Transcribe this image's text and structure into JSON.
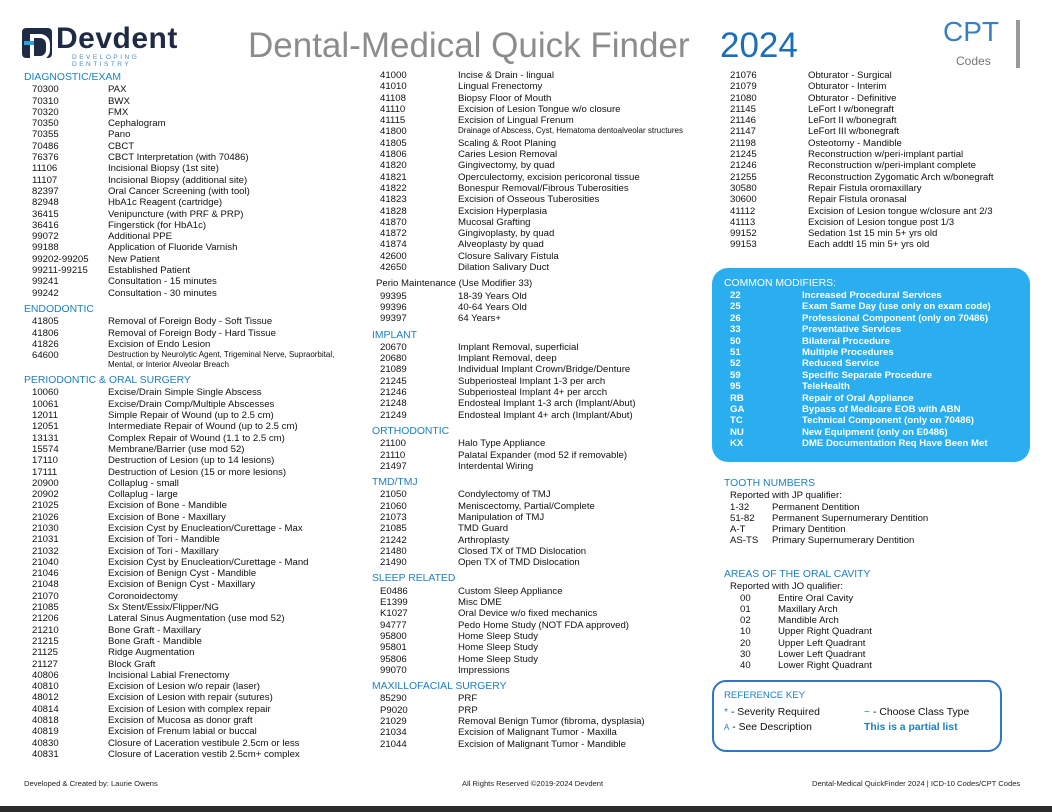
{
  "header": {
    "logo_name": "Devdent",
    "logo_tagline": "DEVELOPING DENTISTRY",
    "title": "Dental-Medical Quick Finder",
    "year": "2024",
    "code_type": "CPT",
    "code_type_sub": "Codes"
  },
  "colors": {
    "accent": "#1b7fc4",
    "modifier_box": "#2aaef0",
    "title_gray": "#8c8c8c"
  },
  "col1": [
    {
      "title": "DIAGNOSTIC/EXAM",
      "rows": [
        [
          "70300",
          "PAX"
        ],
        [
          "70310",
          "BWX"
        ],
        [
          "70320",
          "FMX"
        ],
        [
          "70350",
          "Cephalogram"
        ],
        [
          "70355",
          "Pano"
        ],
        [
          "70486",
          "CBCT"
        ],
        [
          "76376",
          "CBCT Interpretation (with 70486)"
        ],
        [
          "11106",
          "Incisional Biopsy (1st site)"
        ],
        [
          "11107",
          "Incisional Biopsy (additional site)"
        ],
        [
          "82397",
          "Oral Cancer Screening (with tool)"
        ],
        [
          "82948",
          "HbA1c Reagent (cartridge)"
        ],
        [
          "36415",
          "Venipuncture (with PRF & PRP)"
        ],
        [
          "36416",
          "Fingerstick (for HbA1c)"
        ],
        [
          "99072",
          "Additional PPE"
        ],
        [
          "99188",
          "Application of Fluoride Varnish"
        ],
        [
          "99202-99205",
          "New Patient"
        ],
        [
          "99211-99215",
          "Established Patient"
        ],
        [
          "99241",
          "Consultation - 15 minutes"
        ],
        [
          "99242",
          "Consultation - 30 minutes"
        ]
      ]
    },
    {
      "title": "ENDODONTIC",
      "rows": [
        [
          "41805",
          "Removal of Foreign Body - Soft Tissue"
        ],
        [
          "41806",
          "Removal of Foreign Body - Hard Tissue"
        ],
        [
          "41826",
          "Excision of Endo Lesion"
        ],
        [
          "64600",
          "Destruction by Neurolytic Agent, Trigeminal Nerve, Supraorbital, Mental, or Interior Alveolar Breach"
        ]
      ]
    },
    {
      "title": "PERIODONTIC & ORAL SURGERY",
      "rows": [
        [
          "10060",
          "Excise/Drain Simple Single Abscess"
        ],
        [
          "10061",
          "Excise/Drain Comp/Multiple Abscesses"
        ],
        [
          "12011",
          "Simple Repair of Wound (up to 2.5 cm)"
        ],
        [
          "12051",
          "Intermediate Repair of Wound (up to 2.5 cm)"
        ],
        [
          "13131",
          "Complex Repair of Wound (1.1 to 2.5 cm)"
        ],
        [
          "15574",
          "Membrane/Barrier (use mod 52)"
        ],
        [
          "17110",
          "Destruction of Lesion (up to 14 lesions)"
        ],
        [
          "17111",
          "Destruction of Lesion (15 or more lesions)"
        ],
        [
          "20900",
          "Collaplug - small"
        ],
        [
          "20902",
          "Collaplug - large"
        ],
        [
          "21025",
          "Excision of Bone - Mandible"
        ],
        [
          "21026",
          "Excision of Bone - Maxillary"
        ],
        [
          "21030",
          "Excision Cyst by Enucleation/Curettage - Max"
        ],
        [
          "21031",
          "Excision of Tori - Mandible"
        ],
        [
          "21032",
          "Excision of Tori - Maxillary"
        ],
        [
          "21040",
          "Excision Cyst by Enucleation/Curettage - Mand"
        ],
        [
          "21046",
          "Excision of Benign Cyst - Mandible"
        ],
        [
          "21048",
          "Excision of Benign Cyst - Maxillary"
        ],
        [
          "21070",
          "Coronoidectomy"
        ],
        [
          "21085",
          "Sx Stent/Essix/Flipper/NG"
        ],
        [
          "21206",
          "Lateral Sinus Augmentation (use mod 52)"
        ],
        [
          "21210",
          "Bone Graft - Maxillary"
        ],
        [
          "21215",
          "Bone Graft - Mandible"
        ],
        [
          "21125",
          "Ridge Augmentation"
        ],
        [
          "21127",
          "Block Graft"
        ],
        [
          "40806",
          "Incisional Labial Frenectomy"
        ],
        [
          "40810",
          "Excision of Lesion w/o repair (laser)"
        ],
        [
          "48012",
          "Excision of Lesion with repair (sutures)"
        ],
        [
          "40814",
          "Excision of Lesion with complex repair"
        ],
        [
          "40818",
          "Excision of Mucosa as donor graft"
        ],
        [
          "40819",
          "Excision of Frenum labial or buccal"
        ],
        [
          "40830",
          "Closure of Laceration vestibule 2.5cm or less"
        ],
        [
          "40831",
          "Closure of Laceration vestib 2.5cm+ complex"
        ]
      ]
    }
  ],
  "col2": [
    {
      "title": "",
      "rows": [
        [
          "41000",
          "Incise & Drain - lingual"
        ],
        [
          "41010",
          "Lingual Frenectomy"
        ],
        [
          "41108",
          "Biopsy Floor of Mouth"
        ],
        [
          "41110",
          "Excision of Lesion Tongue w/o closure"
        ],
        [
          "41115",
          "Excision of Lingual Frenum"
        ],
        [
          "41800",
          "Drainage of Abscess, Cyst, Hematoma dentoalveolar structures"
        ],
        [
          "41805",
          "Scaling & Root Planing"
        ],
        [
          "41806",
          "Caries Lesion Removal"
        ],
        [
          "41820",
          "Gingivectomy, by quad"
        ],
        [
          "41821",
          "Operculectomy, excision pericoronal tissue"
        ],
        [
          "41822",
          "Bonespur Removal/Fibrous Tuberosities"
        ],
        [
          "41823",
          "Excision of Osseous Tuberosities"
        ],
        [
          "41828",
          "Excision Hyperplasia"
        ],
        [
          "41870",
          "Mucosal Grafting"
        ],
        [
          "41872",
          "Gingivoplasty, by quad"
        ],
        [
          "41874",
          "Alveoplasty by quad"
        ],
        [
          "42600",
          "Closure Salivary Fistula"
        ],
        [
          "42650",
          "Dilation Salivary Duct"
        ]
      ]
    },
    {
      "title": "Perio Maintenance (Use Modifier 33)",
      "rows": [
        [
          "99395",
          "18-39 Years Old"
        ],
        [
          "99396",
          "40-64 Years Old"
        ],
        [
          "99397",
          "64 Years+"
        ]
      ]
    },
    {
      "title": "IMPLANT",
      "rows": [
        [
          "20670",
          "Implant Removal, superficial"
        ],
        [
          "20680",
          "Implant Removal, deep"
        ],
        [
          "21089",
          "Individual Implant Crown/Bridge/Denture"
        ],
        [
          "21245",
          "Subperiosteal Implant 1-3 per arch"
        ],
        [
          "21246",
          "Subperiosteal Implant 4+ per arcch"
        ],
        [
          "21248",
          "Endosteal Implant 1-3 arch (Implant/Abut)"
        ],
        [
          "21249",
          "Endosteal Implant 4+ arch (Implant/Abut)"
        ]
      ]
    },
    {
      "title": "ORTHODONTIC",
      "rows": [
        [
          "21100",
          "Halo Type Appliance"
        ],
        [
          "21110",
          "Palatal Expander (mod 52 if removable)"
        ],
        [
          "21497",
          "Interdental Wiring"
        ]
      ]
    },
    {
      "title": "TMD/TMJ",
      "rows": [
        [
          "21050",
          "Condylectomy of TMJ"
        ],
        [
          "21060",
          "Meniscectomy, Partial/Complete"
        ],
        [
          "21073",
          "Manipulation of TMJ"
        ],
        [
          "21085",
          "TMD Guard"
        ],
        [
          "21242",
          "Arthroplasty"
        ],
        [
          "21480",
          "Closed TX of TMD Dislocation"
        ],
        [
          "21490",
          "Open TX of TMD Dislocation"
        ]
      ]
    },
    {
      "title": "SLEEP RELATED",
      "rows": [
        [
          "E0486",
          "Custom Sleep Appliance"
        ],
        [
          "E1399",
          "Misc DME"
        ],
        [
          "K1027",
          "Oral Device w/o fixed mechanics"
        ],
        [
          "94777",
          "Pedo Home Study (NOT FDA approved)"
        ],
        [
          "95800",
          "Home Sleep Study"
        ],
        [
          "95801",
          "Home Sleep Study"
        ],
        [
          "95806",
          "Home Sleep Study"
        ],
        [
          "99070",
          "Impressions"
        ]
      ]
    },
    {
      "title": "MAXILLOFACIAL SURGERY",
      "rows": [
        [
          "85290",
          "PRF"
        ],
        [
          "P9020",
          "PRP"
        ],
        [
          "21029",
          "Removal Benign Tumor (fibroma, dysplasia)"
        ],
        [
          "21034",
          "Excision of Malignant Tumor - Maxilla"
        ],
        [
          "21044",
          "Excision of Malignant Tumor - Mandible"
        ]
      ]
    }
  ],
  "col3": [
    {
      "title": "",
      "rows": [
        [
          "21076",
          "Obturator - Surgical"
        ],
        [
          "21079",
          "Obturator - Interim"
        ],
        [
          "21080",
          "Obturator - Definitive"
        ],
        [
          "21145",
          "LeFort I w/bonegraft"
        ],
        [
          "21146",
          "LeFort II w/bonegraft"
        ],
        [
          "21147",
          "LeFort III w/bonegraft"
        ],
        [
          "21198",
          "Osteotomy - Mandible"
        ],
        [
          "21245",
          "Reconstruction w/peri-implant partial"
        ],
        [
          "21246",
          "Reconstruction w/peri-implant complete"
        ],
        [
          "21255",
          "Reconstruction Zygomatic Arch w/bonegraft"
        ],
        [
          "30580",
          "Repair Fistula oromaxillary"
        ],
        [
          "30600",
          "Repair Fistula oronasal"
        ],
        [
          "41112",
          "Excision of Lesion tongue w/closure ant 2/3"
        ],
        [
          "41113",
          "Excision of Lesion tongue post 1/3"
        ],
        [
          "99152",
          "Sedation 1st 15 min 5+ yrs old"
        ],
        [
          "99153",
          "Each addtl 15 min 5+ yrs old"
        ]
      ]
    }
  ],
  "modifiers": {
    "title": "COMMON MODIFIERS:",
    "rows": [
      [
        "22",
        "Increased Procedural Services"
      ],
      [
        "25",
        "Exam Same Day (use only on exam code)"
      ],
      [
        "26",
        "Professional Component (only on 70486)"
      ],
      [
        "33",
        "Preventative Services"
      ],
      [
        "50",
        "Bilateral Procedure"
      ],
      [
        "51",
        "Multiple Procedures"
      ],
      [
        "52",
        "Reduced Service"
      ],
      [
        "59",
        "Specific Separate Procedure"
      ],
      [
        "95",
        "TeleHealth"
      ],
      [
        "RB",
        "Repair of Oral Appliance"
      ],
      [
        "GA",
        "Bypass of Medicare EOB with ABN"
      ],
      [
        "TC",
        "Technical Component (only on 70486)"
      ],
      [
        "NU",
        "New Equipment (only on E0486)"
      ],
      [
        "KX",
        "DME Documentation Req Have Been Met"
      ]
    ]
  },
  "tooth_numbers": {
    "title": "TOOTH NUMBERS",
    "subtitle": "Reported with JP qualifier:",
    "rows": [
      [
        "1-32",
        "Permanent Dentition"
      ],
      [
        "51-82",
        "Permanent Supernumerary Dentition"
      ],
      [
        "A-T",
        "Primary Dentition"
      ],
      [
        "AS-TS",
        "Primary Supernumerary Dentition"
      ]
    ]
  },
  "oral_cavity": {
    "title": "AREAS OF THE ORAL CAVITY",
    "subtitle": "Reported with JO qualifier:",
    "rows": [
      [
        "00",
        "Entire Oral Cavity"
      ],
      [
        "01",
        "Maxillary Arch"
      ],
      [
        "02",
        "Mandible Arch"
      ],
      [
        "10",
        "Upper Right Quadrant"
      ],
      [
        "20",
        "Upper Left Quadrant"
      ],
      [
        "30",
        "Lower Left Quadrant"
      ],
      [
        "40",
        "Lower Right Quadrant"
      ]
    ]
  },
  "reference_key": {
    "title": "REFERENCE KEY",
    "severity_symbol": "*",
    "severity_label": "- Severity Required",
    "class_symbol": "~",
    "class_label": "- Choose Class Type",
    "see_symbol": "A",
    "see_label": "- See Description",
    "partial": "This is a partial list"
  },
  "footer": {
    "left": "Developed & Created by: Laurie Owens",
    "center": "All Rights Reserved ©2019-2024 Devdent",
    "right": "Dental-Medical QuickFinder 2024 | ICD-10 Codes/CPT Codes"
  }
}
